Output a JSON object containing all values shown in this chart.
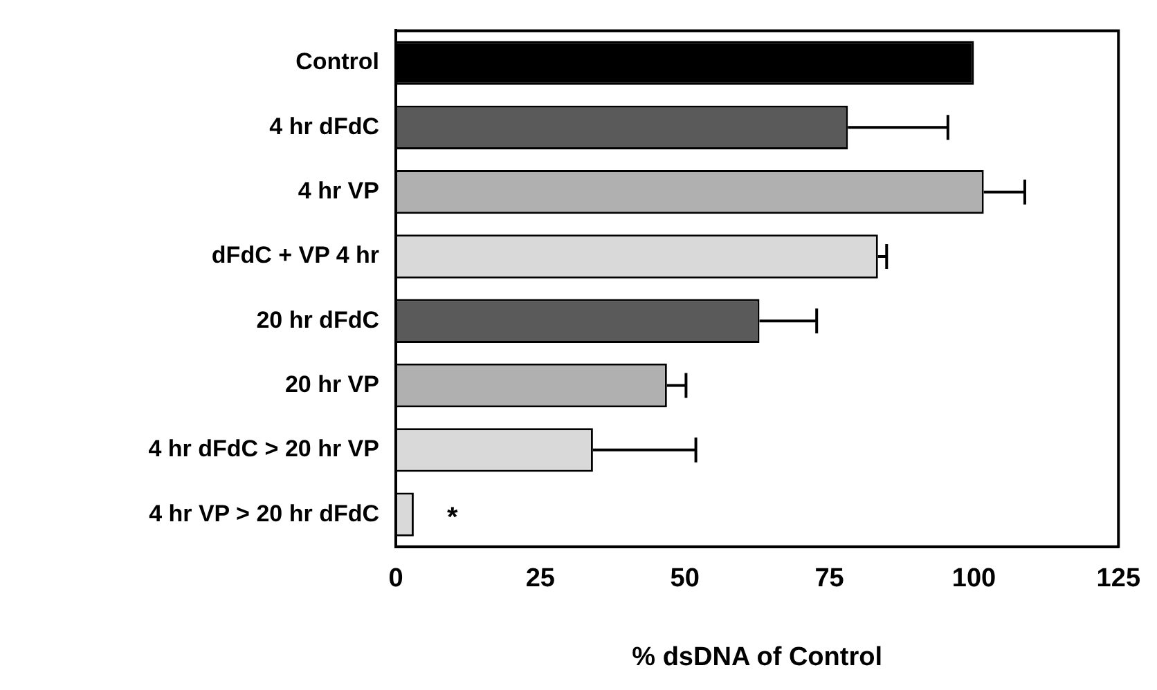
{
  "chart_data": {
    "type": "bar",
    "orientation": "horizontal",
    "xlabel": "% dsDNA of Control",
    "categories": [
      "Control",
      "4 hr dFdC",
      "4 hr VP",
      "dFdC + VP 4 hr",
      "20 hr dFdC",
      "20 hr VP",
      "4 hr dFdC > 20 hr VP",
      "4 hr VP > 20 hr dFdC"
    ],
    "values": [
      100,
      78.2,
      101.7,
      83.4,
      62.9,
      46.9,
      34.1,
      3.1
    ],
    "colors": [
      "#000000",
      "#5a5a5a",
      "#b0b0b0",
      "#d9d9d9",
      "#5a5a5a",
      "#b0b0b0",
      "#d9d9d9",
      "#d9d9d9"
    ],
    "errors": [
      null,
      [
        78.2,
        95.5
      ],
      [
        101.7,
        108.8
      ],
      [
        83.4,
        84.9
      ],
      [
        62.9,
        72.8
      ],
      [
        46.9,
        50.2
      ],
      [
        34.1,
        51.9
      ],
      null
    ],
    "xlim": [
      0,
      125
    ],
    "xticks": [
      0,
      25,
      50,
      75,
      100,
      125
    ],
    "grid": false,
    "legend": false,
    "annotations": [
      "*"
    ]
  }
}
